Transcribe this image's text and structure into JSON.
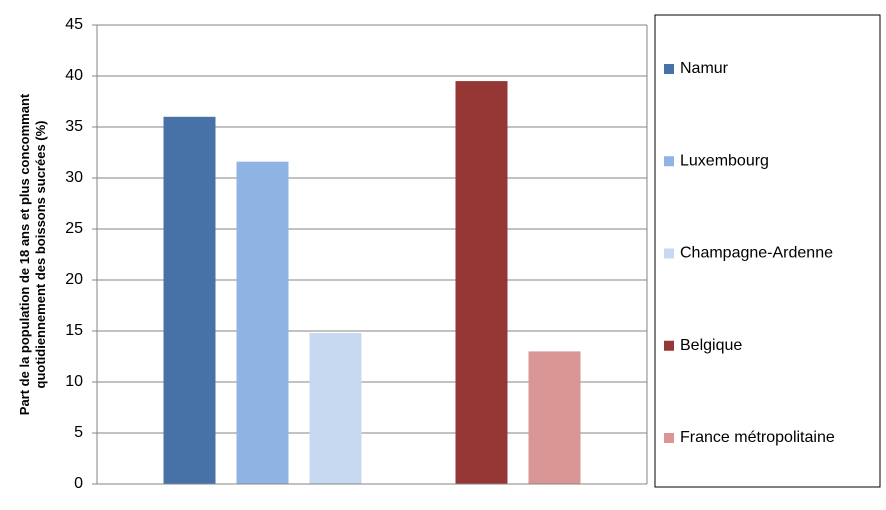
{
  "chart_data": {
    "type": "bar",
    "ylabel": [
      "Part de la population de 18 ans et plus concommant",
      "quotidiennement des boissons sucrées (%)"
    ],
    "categories": [
      null,
      null
    ],
    "series": [
      {
        "name": "Namur",
        "color": "#4672a8",
        "values": [
          36,
          null
        ]
      },
      {
        "name": "Luxembourg",
        "color": "#8fb3e2",
        "values": [
          31.6,
          null
        ]
      },
      {
        "name": "Champagne-Ardenne",
        "color": "#c7d9f0",
        "values": [
          14.8,
          null
        ]
      },
      {
        "name": "Belgique",
        "color": "#953735",
        "values": [
          null,
          39.5
        ]
      },
      {
        "name": "France métropolitaine",
        "color": "#d99694",
        "values": [
          null,
          13
        ]
      }
    ],
    "ylim": [
      0,
      45
    ],
    "yticks": [
      0,
      5,
      10,
      15,
      20,
      25,
      30,
      35,
      40,
      45
    ],
    "grid": true,
    "legend": "right"
  }
}
